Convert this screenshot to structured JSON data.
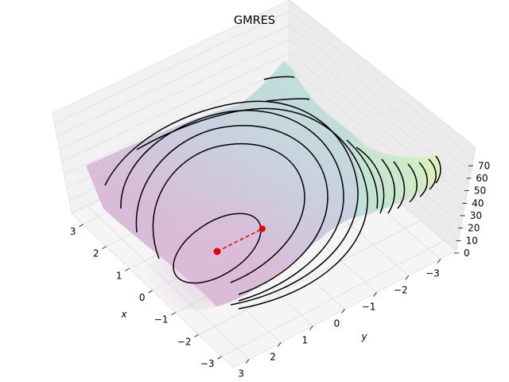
{
  "chart_data": {
    "type": "surface3d",
    "title": "GMRES",
    "xlabel": "x",
    "ylabel": "y",
    "zlabel": "",
    "xlim": [
      -3.5,
      3.5
    ],
    "ylim": [
      -3.5,
      3.5
    ],
    "zlim": [
      0,
      78
    ],
    "x_ticks": [
      "−3",
      "−2",
      "−1",
      "0",
      "1",
      "2",
      "3"
    ],
    "y_ticks": [
      "−3",
      "−2",
      "−1",
      "0",
      "1",
      "2",
      "3"
    ],
    "z_ticks": [
      "0",
      "10",
      "20",
      "30",
      "40",
      "50",
      "60",
      "70"
    ],
    "surface": "quadratic bowl, colored from pink (low) through lavender and teal to yellow (high)",
    "contour_levels": [
      2,
      6,
      12,
      20,
      28,
      36,
      44,
      52,
      60,
      68
    ],
    "path": {
      "style": "red dashed line with circle markers",
      "color": "#e60000",
      "points": [
        {
          "x": 0.3,
          "y": 0.5
        },
        {
          "x": 1.6,
          "y": -0.4
        }
      ]
    },
    "grid": true
  }
}
